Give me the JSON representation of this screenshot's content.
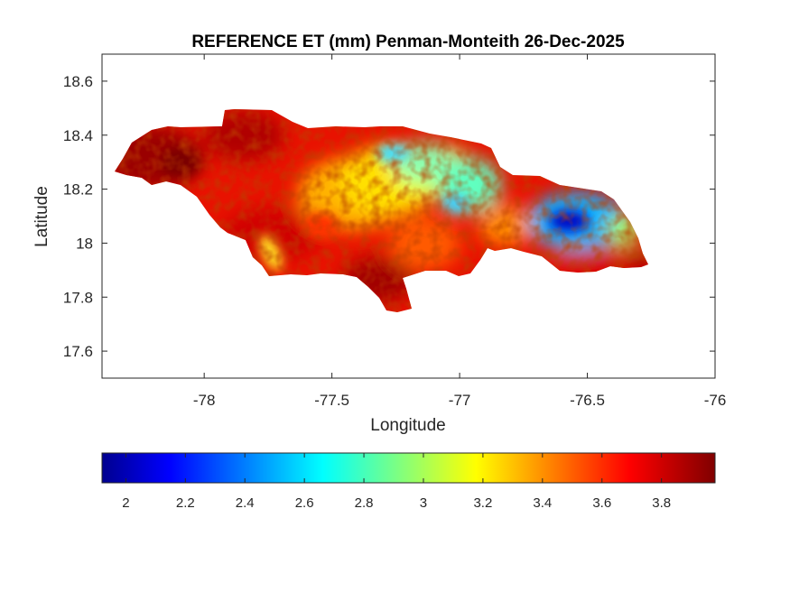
{
  "chart_data": {
    "type": "heatmap",
    "title": "REFERENCE ET (mm) Penman-Monteith 26-Dec-2025",
    "xlabel": "Longitude",
    "ylabel": "Latitude",
    "xlim": [
      -78.4,
      -76
    ],
    "ylim": [
      17.5,
      18.7
    ],
    "x_ticks": [
      -78,
      -77.5,
      -77,
      -76.5,
      -76
    ],
    "x_tick_labels": [
      "-78",
      "-77.5",
      "-77",
      "-76.5",
      "-76"
    ],
    "y_ticks": [
      17.6,
      17.8,
      18,
      18.2,
      18.4,
      18.6
    ],
    "y_tick_labels": [
      "17.6",
      "17.8",
      "18",
      "18.2",
      "18.4",
      "18.6"
    ],
    "grid": false,
    "colormap": "jet",
    "colorbar": {
      "location": "southoutside",
      "range": [
        1.92,
        3.98
      ],
      "ticks": [
        2,
        2.2,
        2.4,
        2.6,
        2.8,
        3,
        3.2,
        3.4,
        3.6,
        3.8
      ],
      "tick_labels": [
        "2",
        "2.2",
        "2.4",
        "2.6",
        "2.8",
        "3",
        "3.2",
        "3.4",
        "3.6",
        "3.8"
      ]
    },
    "value_summary": {
      "west_coast": 3.95,
      "central_north": 3.1,
      "north_east_interior": 2.8,
      "blue_mountains_min": 1.95,
      "south_coast": 3.85,
      "south_west_plain": 3.2
    }
  },
  "colors": {
    "axes_edge": "#262626",
    "background": "#ffffff"
  }
}
